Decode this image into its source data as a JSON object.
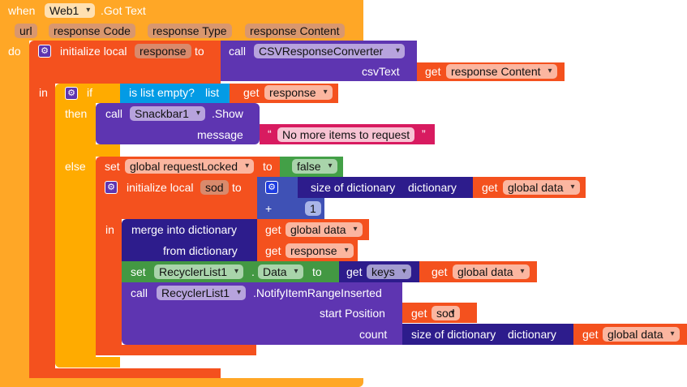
{
  "event": {
    "when": "when",
    "component": "Web1",
    "event_name": ".Got Text",
    "params": [
      "url",
      "response Code",
      "response Type",
      "response Content"
    ],
    "do": "do"
  },
  "init_response": {
    "label": "initialize local",
    "var": "response",
    "to": "to",
    "in": "in"
  },
  "csv_call": {
    "call": "call",
    "component": "CSVResponseConverter",
    "arg": "csvText",
    "get": "get",
    "get_var": "response Content"
  },
  "if_block": {
    "if": "if",
    "then": "then",
    "else": "else"
  },
  "is_empty": {
    "label": "is list empty?",
    "list": "list",
    "get": "get",
    "var": "response"
  },
  "snackbar": {
    "call": "call",
    "component": "Snackbar1",
    "method": ".Show",
    "arg": "message",
    "text_open": "“",
    "text": "No more items to request",
    "text_close": "”"
  },
  "set_locked": {
    "set": "set",
    "var": "global requestLocked",
    "to": "to",
    "value": "false"
  },
  "init_sod": {
    "label": "initialize local",
    "var": "sod",
    "to": "to",
    "in": "in",
    "plus": "+",
    "size_label": "size of dictionary",
    "dictionary": "dictionary",
    "get": "get",
    "get_var": "global data",
    "number": "1"
  },
  "merge": {
    "label": "merge into dictionary",
    "from": "from dictionary",
    "get": "get",
    "var1": "global data",
    "var2": "response"
  },
  "set_data": {
    "set": "set",
    "component": "RecyclerList1",
    "dot": ".",
    "prop": "Data",
    "to": "to",
    "get": "get",
    "keys": "keys",
    "get2": "get",
    "var": "global data"
  },
  "notify": {
    "call": "call",
    "component": "RecyclerList1",
    "method": ".NotifyItemRangeInserted",
    "arg1": "start Position",
    "arg2": "count",
    "get": "get",
    "var1": "sod",
    "size_label": "size of dictionary",
    "dictionary": "dictionary",
    "get2": "get",
    "var2": "global data"
  }
}
